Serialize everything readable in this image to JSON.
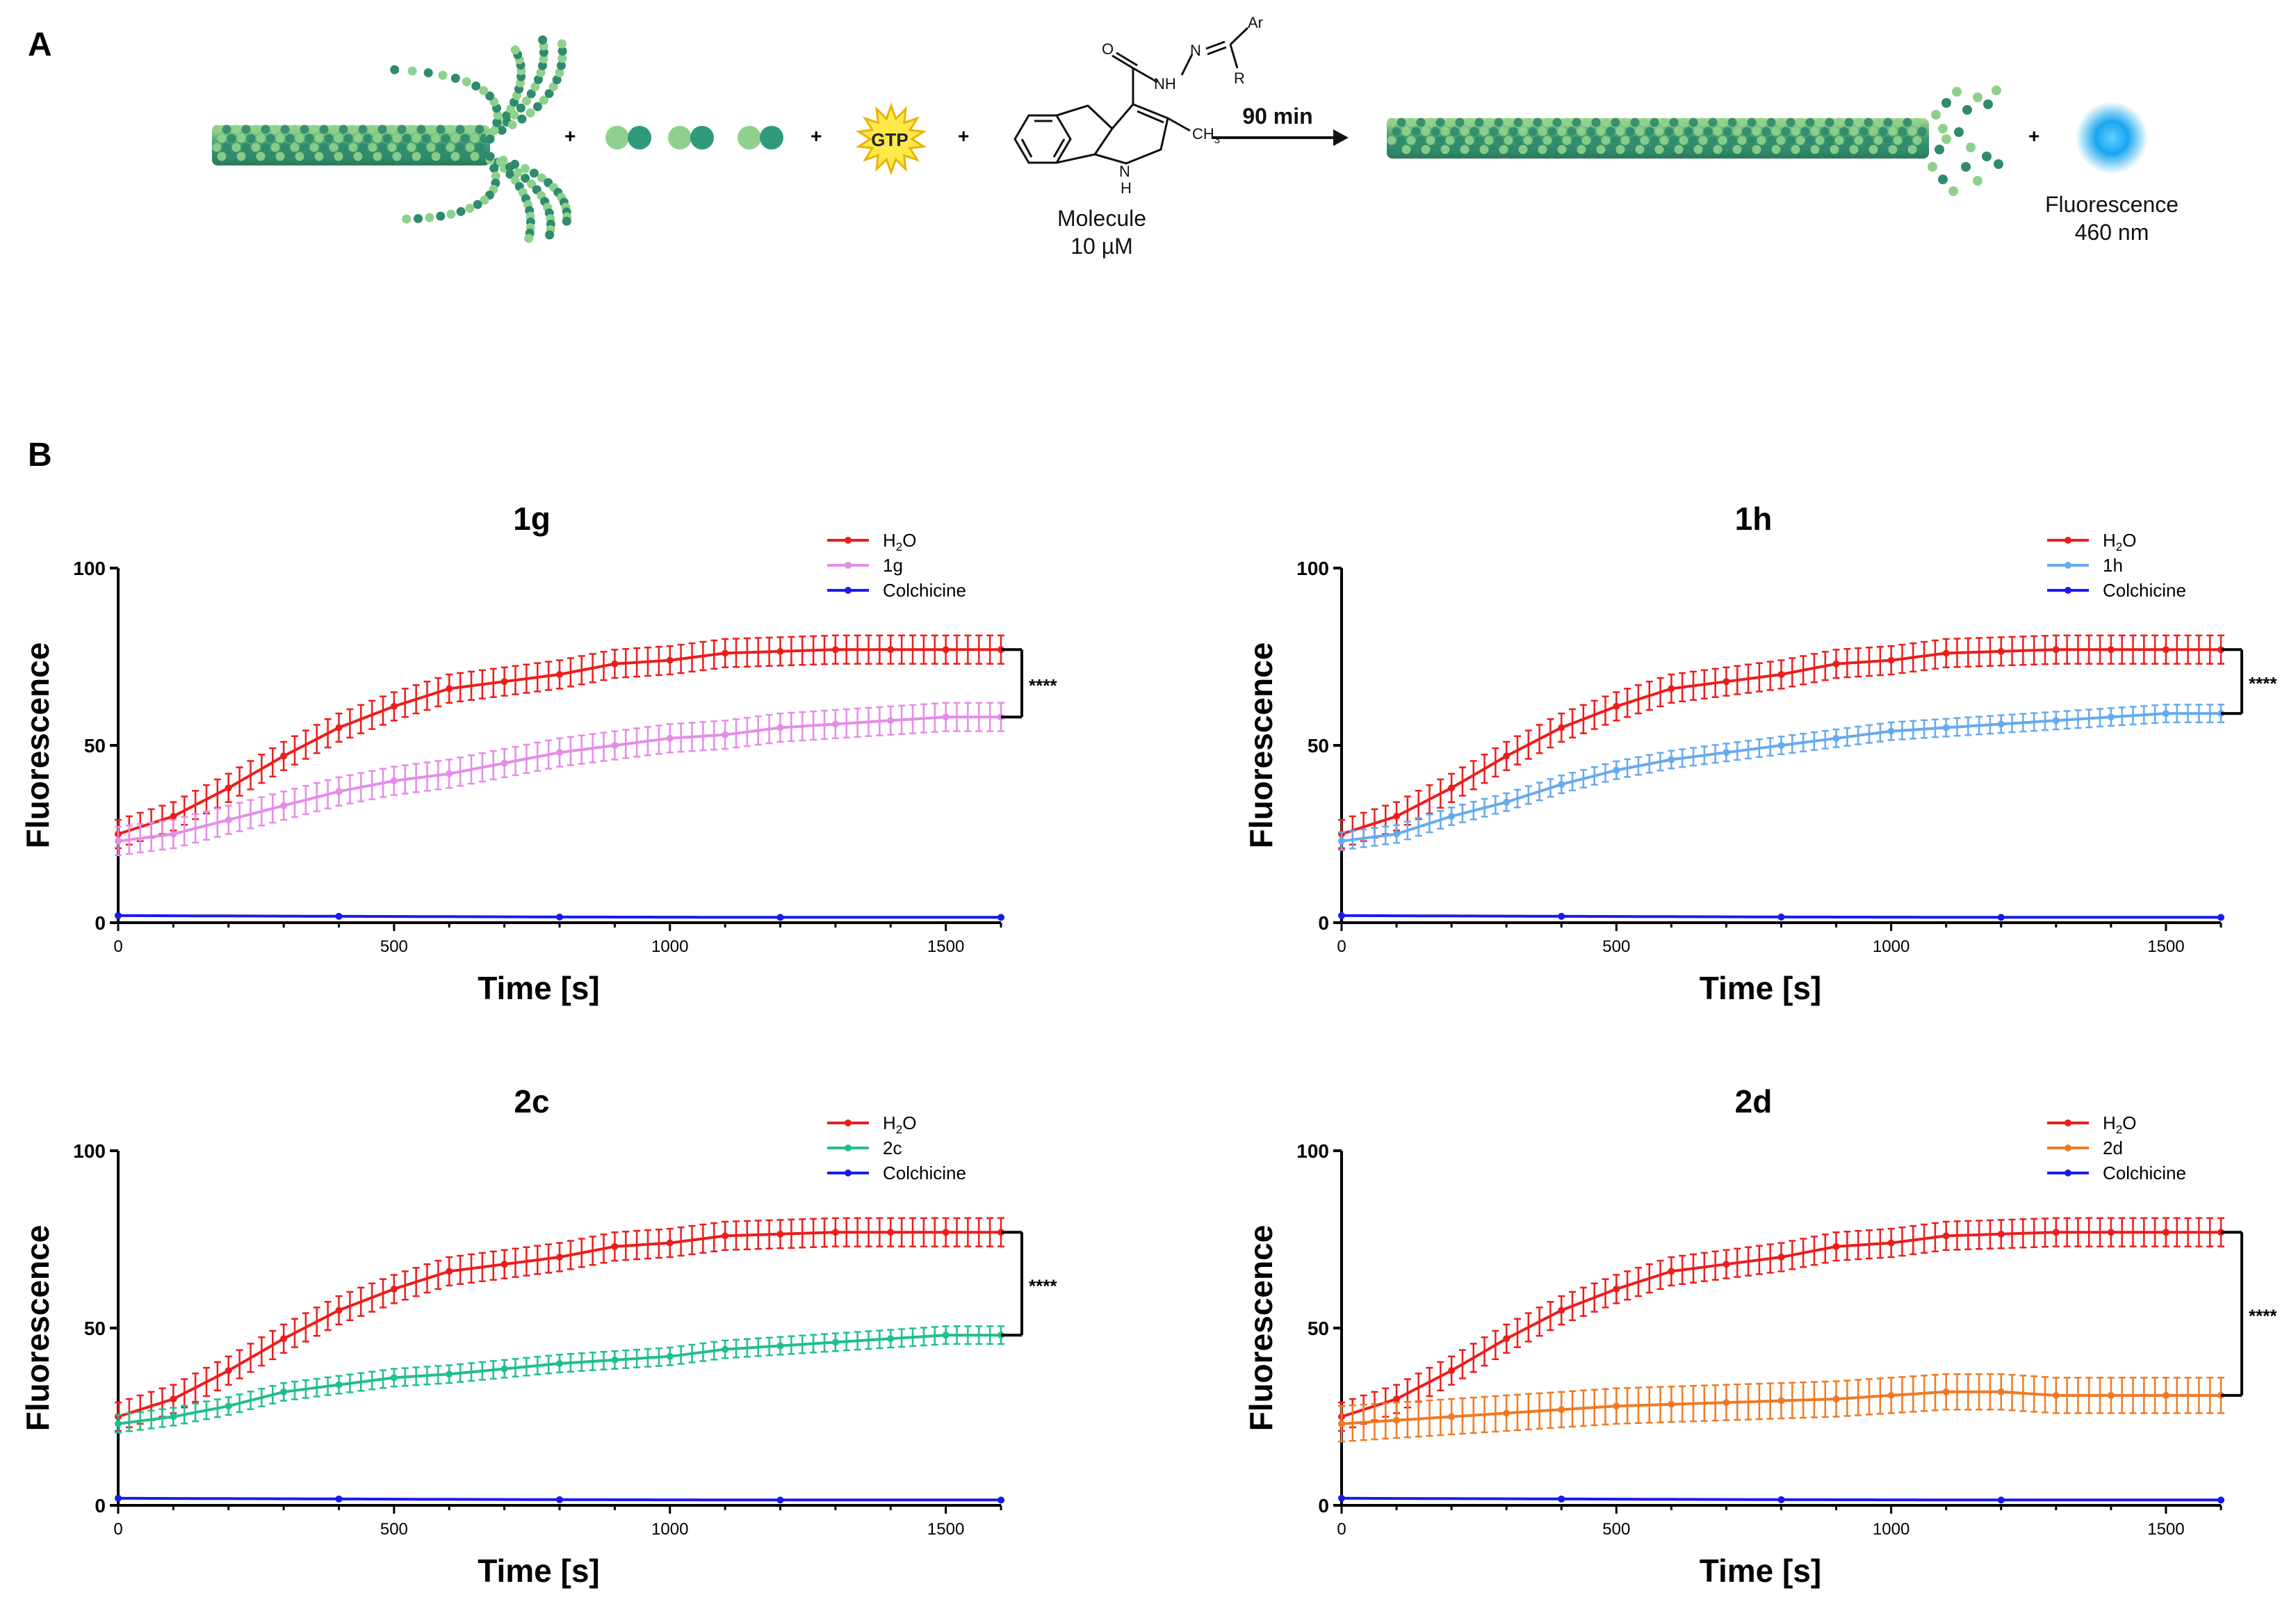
{
  "panel_a": {
    "label": "A",
    "plus": "+",
    "gtp_label": "GTP",
    "molecule_label": "Molecule",
    "molecule_conc": "10 µM",
    "arrow_label": "90 min",
    "fluorescence_label": "Fluorescence",
    "wavelength": "460 nm",
    "chem": {
      "ar": "Ar",
      "r": "R",
      "n": "N",
      "nh": "NH",
      "o": "O",
      "ring_nh": "N",
      "ring_h": "H",
      "ch3": "CH",
      "ch3_sub": "3"
    }
  },
  "panel_b": {
    "label": "B"
  },
  "colors": {
    "h2o": "#ee1c1c",
    "colchicine": "#1a1aee",
    "1g": "#e58ce8",
    "1h": "#66aaee",
    "2c": "#1fbf8f",
    "2d": "#f07a24",
    "tubulin_dark": "#2e8b6e",
    "tubulin_light": "#8fd18c",
    "glow": "#18a6f0"
  },
  "chart_data": [
    {
      "id": "1g",
      "type": "line",
      "title": "1g",
      "xlabel": "Time [s]",
      "ylabel": "Fluorescence",
      "xlim": [
        0,
        1600
      ],
      "ylim": [
        0,
        100
      ],
      "xticks": [
        0,
        500,
        1000,
        1500
      ],
      "yticks": [
        0,
        50,
        100
      ],
      "significance": "****",
      "sig_range": [
        58,
        77
      ],
      "series": [
        {
          "name": "H2O",
          "color_key": "h2o",
          "x": [
            0,
            100,
            200,
            300,
            400,
            500,
            600,
            700,
            800,
            900,
            1000,
            1100,
            1200,
            1300,
            1400,
            1500,
            1600
          ],
          "values": [
            25,
            30,
            38,
            47,
            55,
            61,
            66,
            68,
            70,
            73,
            74,
            76,
            76.5,
            77,
            77,
            77,
            77
          ],
          "err": 4
        },
        {
          "name": "1g",
          "color_key": "1g",
          "x": [
            0,
            100,
            200,
            300,
            400,
            500,
            600,
            700,
            800,
            900,
            1000,
            1100,
            1200,
            1300,
            1400,
            1500,
            1600
          ],
          "values": [
            23,
            25,
            29,
            33,
            37,
            40,
            42,
            45,
            48,
            50,
            52,
            53,
            55,
            56,
            57,
            58,
            58
          ],
          "err": 4
        },
        {
          "name": "Colchicine",
          "color_key": "colchicine",
          "x": [
            0,
            400,
            800,
            1200,
            1600
          ],
          "values": [
            2,
            1.8,
            1.6,
            1.5,
            1.5
          ],
          "err": 0.4
        }
      ]
    },
    {
      "id": "1h",
      "type": "line",
      "title": "1h",
      "xlabel": "Time [s]",
      "ylabel": "Fluorescence",
      "xlim": [
        0,
        1600
      ],
      "ylim": [
        0,
        100
      ],
      "xticks": [
        0,
        500,
        1000,
        1500
      ],
      "yticks": [
        0,
        50,
        100
      ],
      "significance": "****",
      "sig_range": [
        59,
        77
      ],
      "series": [
        {
          "name": "H2O",
          "color_key": "h2o",
          "x": [
            0,
            100,
            200,
            300,
            400,
            500,
            600,
            700,
            800,
            900,
            1000,
            1100,
            1200,
            1300,
            1400,
            1500,
            1600
          ],
          "values": [
            25,
            30,
            38,
            47,
            55,
            61,
            66,
            68,
            70,
            73,
            74,
            76,
            76.5,
            77,
            77,
            77,
            77
          ],
          "err": 4
        },
        {
          "name": "1h",
          "color_key": "1h",
          "x": [
            0,
            100,
            200,
            300,
            400,
            500,
            600,
            700,
            800,
            900,
            1000,
            1100,
            1200,
            1300,
            1400,
            1500,
            1600
          ],
          "values": [
            23,
            25,
            30,
            34,
            39,
            43,
            46,
            48,
            50,
            52,
            54,
            55,
            56,
            57,
            58,
            59,
            59
          ],
          "err": 2.5
        },
        {
          "name": "Colchicine",
          "color_key": "colchicine",
          "x": [
            0,
            400,
            800,
            1200,
            1600
          ],
          "values": [
            2,
            1.8,
            1.6,
            1.5,
            1.5
          ],
          "err": 0.4
        }
      ]
    },
    {
      "id": "2c",
      "type": "line",
      "title": "2c",
      "xlabel": "Time [s]",
      "ylabel": "Fluorescence",
      "xlim": [
        0,
        1600
      ],
      "ylim": [
        0,
        100
      ],
      "xticks": [
        0,
        500,
        1000,
        1500
      ],
      "yticks": [
        0,
        50,
        100
      ],
      "significance": "****",
      "sig_range": [
        48,
        77
      ],
      "series": [
        {
          "name": "H2O",
          "color_key": "h2o",
          "x": [
            0,
            100,
            200,
            300,
            400,
            500,
            600,
            700,
            800,
            900,
            1000,
            1100,
            1200,
            1300,
            1400,
            1500,
            1600
          ],
          "values": [
            25,
            30,
            38,
            47,
            55,
            61,
            66,
            68,
            70,
            73,
            74,
            76,
            76.5,
            77,
            77,
            77,
            77
          ],
          "err": 4
        },
        {
          "name": "2c",
          "color_key": "2c",
          "x": [
            0,
            100,
            200,
            300,
            400,
            500,
            600,
            700,
            800,
            900,
            1000,
            1100,
            1200,
            1300,
            1400,
            1500,
            1600
          ],
          "values": [
            23,
            25,
            28,
            32,
            34,
            36,
            37,
            38.5,
            40,
            41,
            42,
            44,
            45,
            46,
            47,
            48,
            48
          ],
          "err": 2.5
        },
        {
          "name": "Colchicine",
          "color_key": "colchicine",
          "x": [
            0,
            400,
            800,
            1200,
            1600
          ],
          "values": [
            2,
            1.8,
            1.6,
            1.5,
            1.5
          ],
          "err": 0.4
        }
      ]
    },
    {
      "id": "2d",
      "type": "line",
      "title": "2d",
      "xlabel": "Time [s]",
      "ylabel": "Fluorescence",
      "xlim": [
        0,
        1600
      ],
      "ylim": [
        0,
        100
      ],
      "xticks": [
        0,
        500,
        1000,
        1500
      ],
      "yticks": [
        0,
        50,
        100
      ],
      "significance": "****",
      "sig_range": [
        31,
        77
      ],
      "series": [
        {
          "name": "H2O",
          "color_key": "h2o",
          "x": [
            0,
            100,
            200,
            300,
            400,
            500,
            600,
            700,
            800,
            900,
            1000,
            1100,
            1200,
            1300,
            1400,
            1500,
            1600
          ],
          "values": [
            25,
            30,
            38,
            47,
            55,
            61,
            66,
            68,
            70,
            73,
            74,
            76,
            76.5,
            77,
            77,
            77,
            77
          ],
          "err": 4
        },
        {
          "name": "2d",
          "color_key": "2d",
          "x": [
            0,
            100,
            200,
            300,
            400,
            500,
            600,
            700,
            800,
            900,
            1000,
            1100,
            1200,
            1300,
            1400,
            1500,
            1600
          ],
          "values": [
            23,
            24,
            25,
            26,
            27,
            28,
            28.5,
            29,
            29.5,
            30,
            31,
            32,
            32,
            31,
            31,
            31,
            31
          ],
          "err": 5
        },
        {
          "name": "Colchicine",
          "color_key": "colchicine",
          "x": [
            0,
            400,
            800,
            1200,
            1600
          ],
          "values": [
            2,
            1.8,
            1.6,
            1.5,
            1.5
          ],
          "err": 0.4
        }
      ]
    }
  ]
}
